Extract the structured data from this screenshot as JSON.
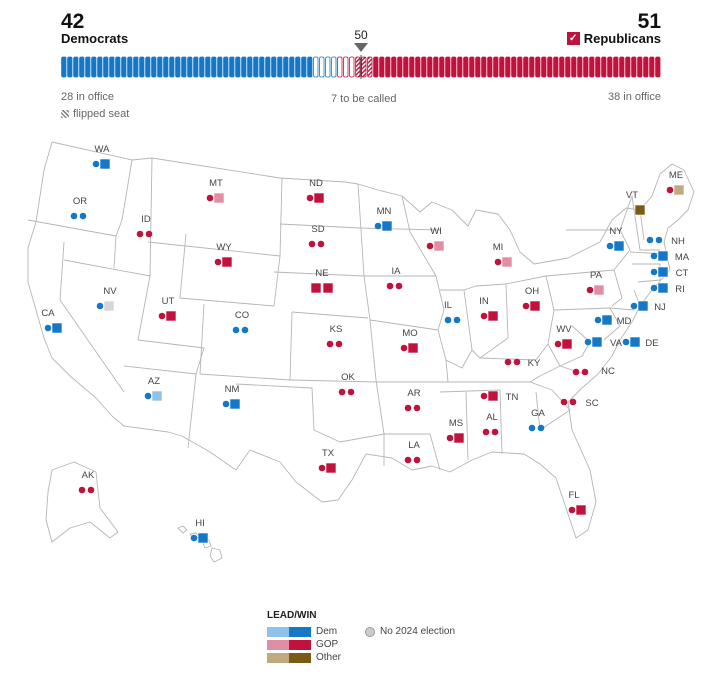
{
  "header": {
    "dem_count": "42",
    "dem_label": "Democrats",
    "rep_count": "51",
    "rep_label": "Republicans",
    "rep_check": "✓",
    "majority": "50",
    "dem_in_office": "28 in office",
    "to_be_called": "7 to be called",
    "rep_in_office": "38 in office",
    "flipped_seat": "flipped seat"
  },
  "seat_bar": {
    "dem_in_office": 28,
    "dem_won": 14,
    "dem_uncalled": 4,
    "rep_uncalled": 3,
    "rep_won": 13,
    "rep_in_office": 38,
    "rep_flipped": 3,
    "colors": {
      "dem": "#1478c6",
      "rep": "#c0123c",
      "dem_light": "#7fb8e6",
      "rep_light": "#e0809a"
    }
  },
  "states": [
    {
      "abbr": "WA",
      "marks": [
        "dem-dot",
        "dem-square"
      ]
    },
    {
      "abbr": "OR",
      "marks": [
        "dem-dot",
        "dem-dot"
      ]
    },
    {
      "abbr": "CA",
      "marks": [
        "dem-dot",
        "dem-square"
      ]
    },
    {
      "abbr": "NV",
      "marks": [
        "dem-dot",
        "none-square"
      ]
    },
    {
      "abbr": "ID",
      "marks": [
        "rep-dot",
        "rep-dot"
      ]
    },
    {
      "abbr": "MT",
      "marks": [
        "rep-dot",
        "rep-lead-square"
      ]
    },
    {
      "abbr": "WY",
      "marks": [
        "rep-dot",
        "rep-square"
      ]
    },
    {
      "abbr": "UT",
      "marks": [
        "rep-dot",
        "rep-square"
      ]
    },
    {
      "abbr": "AZ",
      "marks": [
        "dem-dot",
        "dem-lead-square"
      ]
    },
    {
      "abbr": "CO",
      "marks": [
        "dem-dot",
        "dem-dot"
      ]
    },
    {
      "abbr": "NM",
      "marks": [
        "dem-dot",
        "dem-square"
      ]
    },
    {
      "abbr": "ND",
      "marks": [
        "rep-dot",
        "rep-square"
      ]
    },
    {
      "abbr": "SD",
      "marks": [
        "rep-dot",
        "rep-dot"
      ]
    },
    {
      "abbr": "NE",
      "marks": [
        "rep-square",
        "rep-square"
      ]
    },
    {
      "abbr": "KS",
      "marks": [
        "rep-dot",
        "rep-dot"
      ]
    },
    {
      "abbr": "OK",
      "marks": [
        "rep-dot",
        "rep-dot"
      ]
    },
    {
      "abbr": "TX",
      "marks": [
        "rep-dot",
        "rep-square"
      ]
    },
    {
      "abbr": "MN",
      "marks": [
        "dem-dot",
        "dem-square"
      ]
    },
    {
      "abbr": "IA",
      "marks": [
        "rep-dot",
        "rep-dot"
      ]
    },
    {
      "abbr": "MO",
      "marks": [
        "rep-dot",
        "rep-square"
      ]
    },
    {
      "abbr": "AR",
      "marks": [
        "rep-dot",
        "rep-dot"
      ]
    },
    {
      "abbr": "LA",
      "marks": [
        "rep-dot",
        "rep-dot"
      ]
    },
    {
      "abbr": "WI",
      "marks": [
        "rep-dot",
        "rep-lead-square"
      ]
    },
    {
      "abbr": "IL",
      "marks": [
        "dem-dot",
        "dem-dot"
      ]
    },
    {
      "abbr": "MI",
      "marks": [
        "rep-dot",
        "rep-lead-square"
      ]
    },
    {
      "abbr": "IN",
      "marks": [
        "rep-dot",
        "rep-square"
      ]
    },
    {
      "abbr": "OH",
      "marks": [
        "rep-dot",
        "rep-square"
      ]
    },
    {
      "abbr": "KY",
      "marks": [
        "rep-dot",
        "rep-dot"
      ]
    },
    {
      "abbr": "TN",
      "marks": [
        "rep-dot",
        "rep-square"
      ]
    },
    {
      "abbr": "MS",
      "marks": [
        "rep-dot",
        "rep-square"
      ]
    },
    {
      "abbr": "AL",
      "marks": [
        "rep-dot",
        "rep-dot"
      ]
    },
    {
      "abbr": "GA",
      "marks": [
        "dem-dot",
        "dem-dot"
      ]
    },
    {
      "abbr": "FL",
      "marks": [
        "rep-dot",
        "rep-square"
      ]
    },
    {
      "abbr": "SC",
      "marks": [
        "rep-dot",
        "rep-dot"
      ]
    },
    {
      "abbr": "NC",
      "marks": [
        "rep-dot",
        "rep-dot"
      ]
    },
    {
      "abbr": "WV",
      "marks": [
        "rep-dot",
        "rep-square"
      ]
    },
    {
      "abbr": "VA",
      "marks": [
        "dem-dot",
        "dem-square"
      ]
    },
    {
      "abbr": "PA",
      "marks": [
        "rep-dot",
        "rep-lead-square"
      ]
    },
    {
      "abbr": "NY",
      "marks": [
        "dem-dot",
        "dem-square"
      ]
    },
    {
      "abbr": "VT",
      "marks": [
        "other-square"
      ]
    },
    {
      "abbr": "ME",
      "marks": [
        "rep-dot",
        "other-lead-square"
      ]
    },
    {
      "abbr": "NH",
      "marks": [
        "dem-dot",
        "dem-dot"
      ]
    },
    {
      "abbr": "MA",
      "marks": [
        "dem-dot",
        "dem-square"
      ]
    },
    {
      "abbr": "CT",
      "marks": [
        "dem-dot",
        "dem-square"
      ]
    },
    {
      "abbr": "RI",
      "marks": [
        "dem-dot",
        "dem-square"
      ]
    },
    {
      "abbr": "NJ",
      "marks": [
        "dem-dot",
        "dem-square"
      ]
    },
    {
      "abbr": "MD",
      "marks": [
        "dem-dot",
        "dem-square"
      ]
    },
    {
      "abbr": "DE",
      "marks": [
        "dem-dot",
        "dem-square"
      ]
    },
    {
      "abbr": "AK",
      "marks": [
        "rep-dot",
        "rep-dot"
      ]
    },
    {
      "abbr": "HI",
      "marks": [
        "dem-dot",
        "dem-square"
      ]
    }
  ],
  "legend": {
    "title": "LEAD/WIN",
    "dem": "Dem",
    "gop": "GOP",
    "other": "Other",
    "no_election": "No 2024 election"
  },
  "colors": {
    "dem": "#1478c6",
    "dem_lead": "#8ec2ea",
    "rep": "#c0123c",
    "rep_lead": "#e08ea3",
    "other": "#7a5a14",
    "other_lead": "#bfaa80",
    "none": "#d6d6d6"
  }
}
